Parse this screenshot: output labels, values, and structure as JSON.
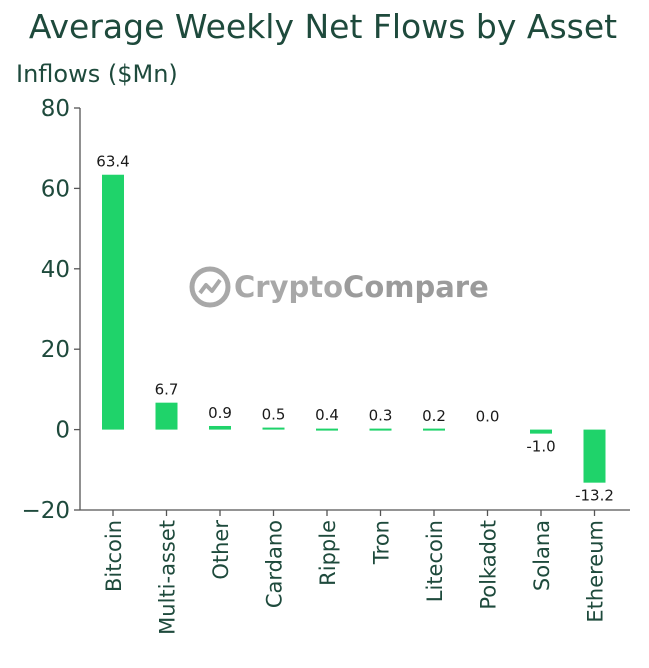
{
  "colors": {
    "bar": "#1fd36a",
    "text": "#1e4a3c",
    "axis": "#555555",
    "watermark": "#9a9a9a"
  },
  "watermark": {
    "text_a": "Crypto",
    "text_b": "Compare",
    "icon": "cryptocompare-logo-icon"
  },
  "chart_data": {
    "type": "bar",
    "title": "Average Weekly Net Flows by Asset",
    "ylabel": "Inflows ($Mn)",
    "xlabel": "",
    "categories": [
      "Bitcoin",
      "Multi-asset",
      "Other",
      "Cardano",
      "Ripple",
      "Tron",
      "Litecoin",
      "Polkadot",
      "Solana",
      "Ethereum"
    ],
    "values": [
      63.4,
      6.7,
      0.9,
      0.5,
      0.4,
      0.3,
      0.2,
      0.0,
      -1.0,
      -13.2
    ],
    "data_labels": [
      "63.4",
      "6.7",
      "0.9",
      "0.5",
      "0.4",
      "0.3",
      "0.2",
      "0.0",
      "-1.0",
      "-13.2"
    ],
    "ylim": [
      -20,
      80
    ],
    "yticks": [
      -20,
      0,
      20,
      40,
      60,
      80
    ],
    "ytick_labels": [
      "−20",
      "0",
      "20",
      "40",
      "60",
      "80"
    ],
    "grid": false,
    "legend": "none"
  }
}
